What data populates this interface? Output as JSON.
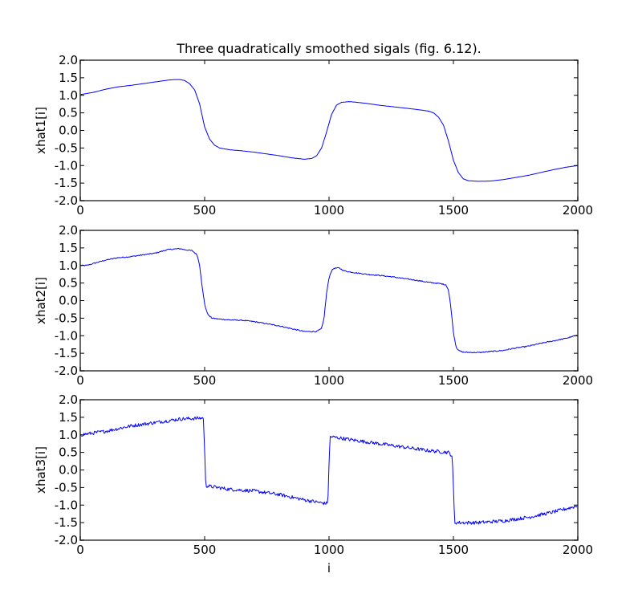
{
  "figure": {
    "title": "Three quadratically smoothed sigals (fig. 6.12).",
    "xlabel": "i",
    "line_color": "#0000ff",
    "frame_color": "#444444"
  },
  "chart_data": [
    {
      "type": "line",
      "title": "Three quadratically smoothed sigals (fig. 6.12).",
      "xlabel": "",
      "ylabel": "xhat1[i]",
      "xlim": [
        0,
        2000
      ],
      "ylim": [
        -2.0,
        2.0
      ],
      "xticks": [
        "0",
        "500",
        "1000",
        "1500",
        "2000"
      ],
      "yticks": [
        "2.0",
        "1.5",
        "1.0",
        "0.5",
        "0.0",
        "-0.5",
        "-1.0",
        "-1.5",
        "-2.0"
      ],
      "grid": false,
      "noise": 0,
      "x": [
        0,
        50,
        100,
        150,
        200,
        250,
        300,
        350,
        380,
        400,
        420,
        440,
        460,
        480,
        500,
        520,
        540,
        560,
        600,
        650,
        700,
        750,
        800,
        850,
        900,
        930,
        950,
        970,
        990,
        1010,
        1030,
        1050,
        1080,
        1100,
        1150,
        1200,
        1250,
        1300,
        1350,
        1400,
        1420,
        1440,
        1460,
        1480,
        1500,
        1520,
        1540,
        1560,
        1600,
        1650,
        1700,
        1750,
        1800,
        1850,
        1900,
        1950,
        2000
      ],
      "values": [
        1.02,
        1.08,
        1.17,
        1.24,
        1.28,
        1.33,
        1.38,
        1.43,
        1.45,
        1.45,
        1.42,
        1.33,
        1.15,
        0.75,
        0.1,
        -0.25,
        -0.42,
        -0.5,
        -0.55,
        -0.58,
        -0.62,
        -0.67,
        -0.72,
        -0.78,
        -0.82,
        -0.8,
        -0.72,
        -0.5,
        -0.05,
        0.45,
        0.72,
        0.8,
        0.82,
        0.81,
        0.77,
        0.72,
        0.68,
        0.64,
        0.6,
        0.55,
        0.5,
        0.38,
        0.15,
        -0.3,
        -0.85,
        -1.2,
        -1.38,
        -1.43,
        -1.45,
        -1.44,
        -1.4,
        -1.34,
        -1.28,
        -1.2,
        -1.12,
        -1.05,
        -1.0
      ]
    },
    {
      "type": "line",
      "xlabel": "",
      "ylabel": "xhat2[i]",
      "xlim": [
        0,
        2000
      ],
      "ylim": [
        -2.0,
        2.0
      ],
      "xticks": [
        "0",
        "500",
        "1000",
        "1500",
        "2000"
      ],
      "yticks": [
        "2.0",
        "1.5",
        "1.0",
        "0.5",
        "0.0",
        "-0.5",
        "-1.0",
        "-1.5",
        "-2.0"
      ],
      "grid": false,
      "noise": 0.015,
      "x": [
        0,
        25,
        50,
        100,
        150,
        200,
        250,
        300,
        350,
        400,
        420,
        450,
        470,
        480,
        490,
        500,
        510,
        520,
        530,
        550,
        600,
        650,
        700,
        750,
        800,
        850,
        900,
        950,
        970,
        980,
        990,
        1000,
        1010,
        1020,
        1040,
        1060,
        1080,
        1100,
        1150,
        1200,
        1250,
        1300,
        1350,
        1400,
        1450,
        1470,
        1480,
        1490,
        1500,
        1510,
        1520,
        1540,
        1600,
        1650,
        1700,
        1750,
        1800,
        1850,
        1900,
        1950,
        1990,
        2000
      ],
      "values": [
        1.0,
        1.0,
        1.05,
        1.15,
        1.22,
        1.25,
        1.3,
        1.35,
        1.45,
        1.48,
        1.45,
        1.42,
        1.3,
        1.0,
        0.4,
        -0.1,
        -0.35,
        -0.45,
        -0.5,
        -0.52,
        -0.55,
        -0.56,
        -0.6,
        -0.66,
        -0.72,
        -0.8,
        -0.88,
        -0.88,
        -0.8,
        -0.5,
        0.2,
        0.65,
        0.85,
        0.92,
        0.93,
        0.85,
        0.82,
        0.8,
        0.75,
        0.72,
        0.68,
        0.63,
        0.58,
        0.52,
        0.48,
        0.45,
        0.3,
        -0.2,
        -0.9,
        -1.3,
        -1.42,
        -1.47,
        -1.48,
        -1.45,
        -1.42,
        -1.35,
        -1.3,
        -1.22,
        -1.15,
        -1.08,
        -1.0,
        -1.0
      ]
    },
    {
      "type": "line",
      "xlabel": "i",
      "ylabel": "xhat3[i]",
      "xlim": [
        0,
        2000
      ],
      "ylim": [
        -2.0,
        2.0
      ],
      "xticks": [
        "0",
        "500",
        "1000",
        "1500",
        "2000"
      ],
      "yticks": [
        "2.0",
        "1.5",
        "1.0",
        "0.5",
        "0.0",
        "-0.5",
        "-1.0",
        "-1.5",
        "-2.0"
      ],
      "grid": false,
      "noise": 0.05,
      "x": [
        0,
        100,
        200,
        300,
        400,
        495,
        500,
        505,
        600,
        700,
        800,
        900,
        980,
        995,
        1000,
        1005,
        1100,
        1200,
        1300,
        1400,
        1480,
        1495,
        1500,
        1505,
        1600,
        1700,
        1800,
        1900,
        2000
      ],
      "values": [
        1.0,
        1.1,
        1.25,
        1.35,
        1.45,
        1.48,
        0.5,
        -0.45,
        -0.55,
        -0.6,
        -0.7,
        -0.85,
        -0.95,
        -0.95,
        0.2,
        0.95,
        0.85,
        0.75,
        0.65,
        0.55,
        0.5,
        0.4,
        -0.5,
        -1.5,
        -1.5,
        -1.45,
        -1.35,
        -1.2,
        -1.02
      ]
    }
  ],
  "subplots": [
    {
      "ylabel": "xhat1[i]"
    },
    {
      "ylabel": "xhat2[i]"
    },
    {
      "ylabel": "xhat3[i]"
    }
  ]
}
